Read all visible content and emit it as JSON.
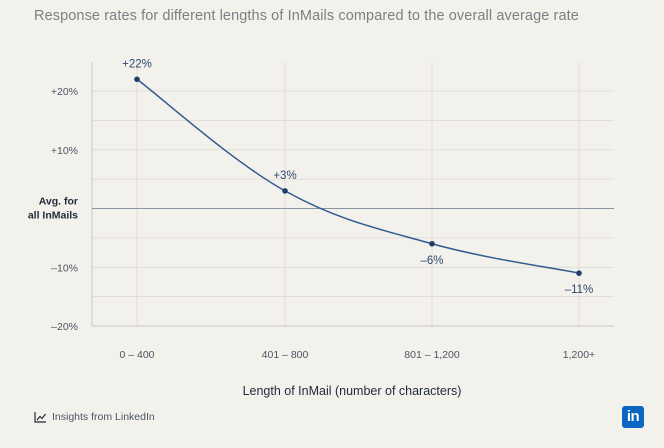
{
  "chart_data": {
    "type": "line",
    "title": "Response rates for different lengths of InMails compared to the overall average rate",
    "xlabel": "Length of InMail (number of characters)",
    "ylabel": "",
    "categories": [
      "0 – 400",
      "401 – 800",
      "801 – 1,200",
      "1,200+"
    ],
    "values": [
      22,
      3,
      -6,
      -11
    ],
    "data_labels": [
      "+22%",
      "+3%",
      "–6%",
      "–11%"
    ],
    "ylim": [
      -20,
      20
    ],
    "y_ticks": [
      {
        "value": 20,
        "label": "+20%"
      },
      {
        "value": 10,
        "label": "+10%"
      },
      {
        "value": -10,
        "label": "–10%"
      },
      {
        "value": -20,
        "label": "–20%"
      }
    ],
    "baseline": {
      "value": 0,
      "label_line1": "Avg. for",
      "label_line2": "all InMails"
    },
    "grid": true,
    "line_color": "#2f5b8f"
  },
  "footer": {
    "source_label": "Insights from LinkedIn",
    "source_icon": "trend-chart-icon",
    "logo_text": "in",
    "logo_color": "#0a66c2"
  }
}
